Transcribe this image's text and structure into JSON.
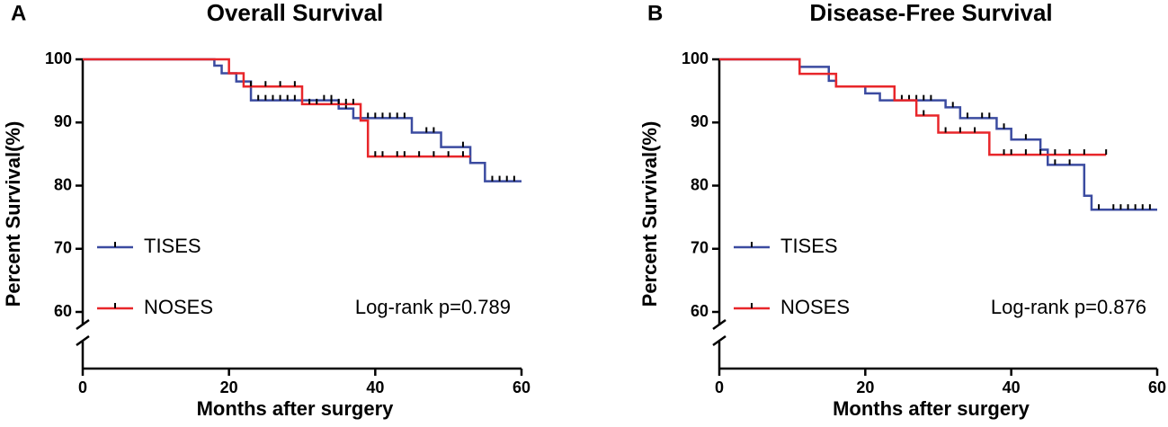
{
  "chart_data": [
    {
      "type": "km",
      "panel": "A",
      "title": "Overall Survival",
      "x_label": "Months after surgery",
      "y_label": "Percent  Survival(%)",
      "annotation": "Log-rank p=0.789",
      "xlim": [
        0,
        60
      ],
      "xticks": [
        0,
        20,
        40,
        60
      ],
      "ylim": [
        60,
        100
      ],
      "yticks": [
        60,
        70,
        80,
        90,
        100
      ],
      "series": [
        {
          "name": "TISES",
          "color": "#3b4ba0",
          "x": [
            0,
            18,
            19,
            21,
            23,
            35,
            37,
            45,
            49,
            53,
            55,
            60
          ],
          "values": [
            100,
            99,
            97.8,
            96.5,
            93.5,
            92.2,
            90.7,
            88.4,
            86.1,
            83.6,
            80.7,
            80.7
          ],
          "censor_x": [
            24,
            25,
            26,
            27,
            28,
            29,
            33,
            34,
            36,
            39,
            40,
            41,
            42,
            43,
            44,
            47,
            48,
            52,
            56,
            57,
            58,
            59
          ],
          "censor_values": [
            93.5,
            93.5,
            93.5,
            93.5,
            93.5,
            93.5,
            93.5,
            93.5,
            92.2,
            90.7,
            90.7,
            90.7,
            90.7,
            90.7,
            90.7,
            88.4,
            88.4,
            86.1,
            80.7,
            80.7,
            80.7,
            80.7
          ]
        },
        {
          "name": "NOSES",
          "color": "#e8262a",
          "x": [
            0,
            20,
            22,
            30,
            38,
            39,
            53
          ],
          "values": [
            100,
            97.8,
            95.7,
            92.9,
            90.3,
            84.6,
            84.6
          ],
          "censor_x": [
            23,
            25,
            27,
            29,
            31,
            32,
            34,
            35,
            36,
            37,
            40,
            41,
            43,
            44,
            46,
            48,
            50,
            52
          ],
          "censor_values": [
            95.7,
            95.7,
            95.7,
            95.7,
            92.9,
            92.9,
            92.9,
            92.9,
            92.9,
            92.9,
            84.6,
            84.6,
            84.6,
            84.6,
            84.6,
            84.6,
            84.6,
            84.6
          ]
        }
      ]
    },
    {
      "type": "km",
      "panel": "B",
      "title": "Disease-Free Survival",
      "x_label": "Months after surgery",
      "y_label": "Percent  Survival(%)",
      "annotation": "Log-rank p=0.876",
      "xlim": [
        0,
        60
      ],
      "xticks": [
        0,
        20,
        40,
        60
      ],
      "ylim": [
        60,
        100
      ],
      "yticks": [
        60,
        70,
        80,
        90,
        100
      ],
      "series": [
        {
          "name": "TISES",
          "color": "#3b4ba0",
          "x": [
            0,
            11,
            15,
            16,
            20,
            22,
            31,
            33,
            38,
            40,
            44,
            45,
            50,
            51,
            60
          ],
          "values": [
            100,
            98.8,
            96.6,
            95.7,
            94.6,
            93.5,
            92.4,
            90.7,
            89,
            87.3,
            85.7,
            83.3,
            78.4,
            76.2,
            76.2
          ],
          "censor_x": [
            24,
            25,
            26,
            27,
            28,
            29,
            32,
            34,
            36,
            37,
            39,
            42,
            46,
            48,
            52,
            54,
            55,
            56,
            57,
            58,
            59
          ],
          "censor_values": [
            93.5,
            93.5,
            93.5,
            93.5,
            93.5,
            93.5,
            92.4,
            90.7,
            90.7,
            90.7,
            89,
            87.3,
            83.3,
            83.3,
            76.2,
            76.2,
            76.2,
            76.2,
            76.2,
            76.2,
            76.2
          ]
        },
        {
          "name": "NOSES",
          "color": "#e8262a",
          "x": [
            0,
            11,
            16,
            24,
            27,
            30,
            37,
            53
          ],
          "values": [
            100,
            97.7,
            95.7,
            93.5,
            91.1,
            88.4,
            84.9,
            84.9
          ],
          "censor_x": [
            28,
            31,
            33,
            35,
            39,
            40,
            42,
            44,
            46,
            48,
            50,
            53
          ],
          "censor_values": [
            91.1,
            88.4,
            88.4,
            88.4,
            84.9,
            84.9,
            84.9,
            84.9,
            84.9,
            84.9,
            84.9,
            84.9
          ]
        }
      ]
    }
  ]
}
